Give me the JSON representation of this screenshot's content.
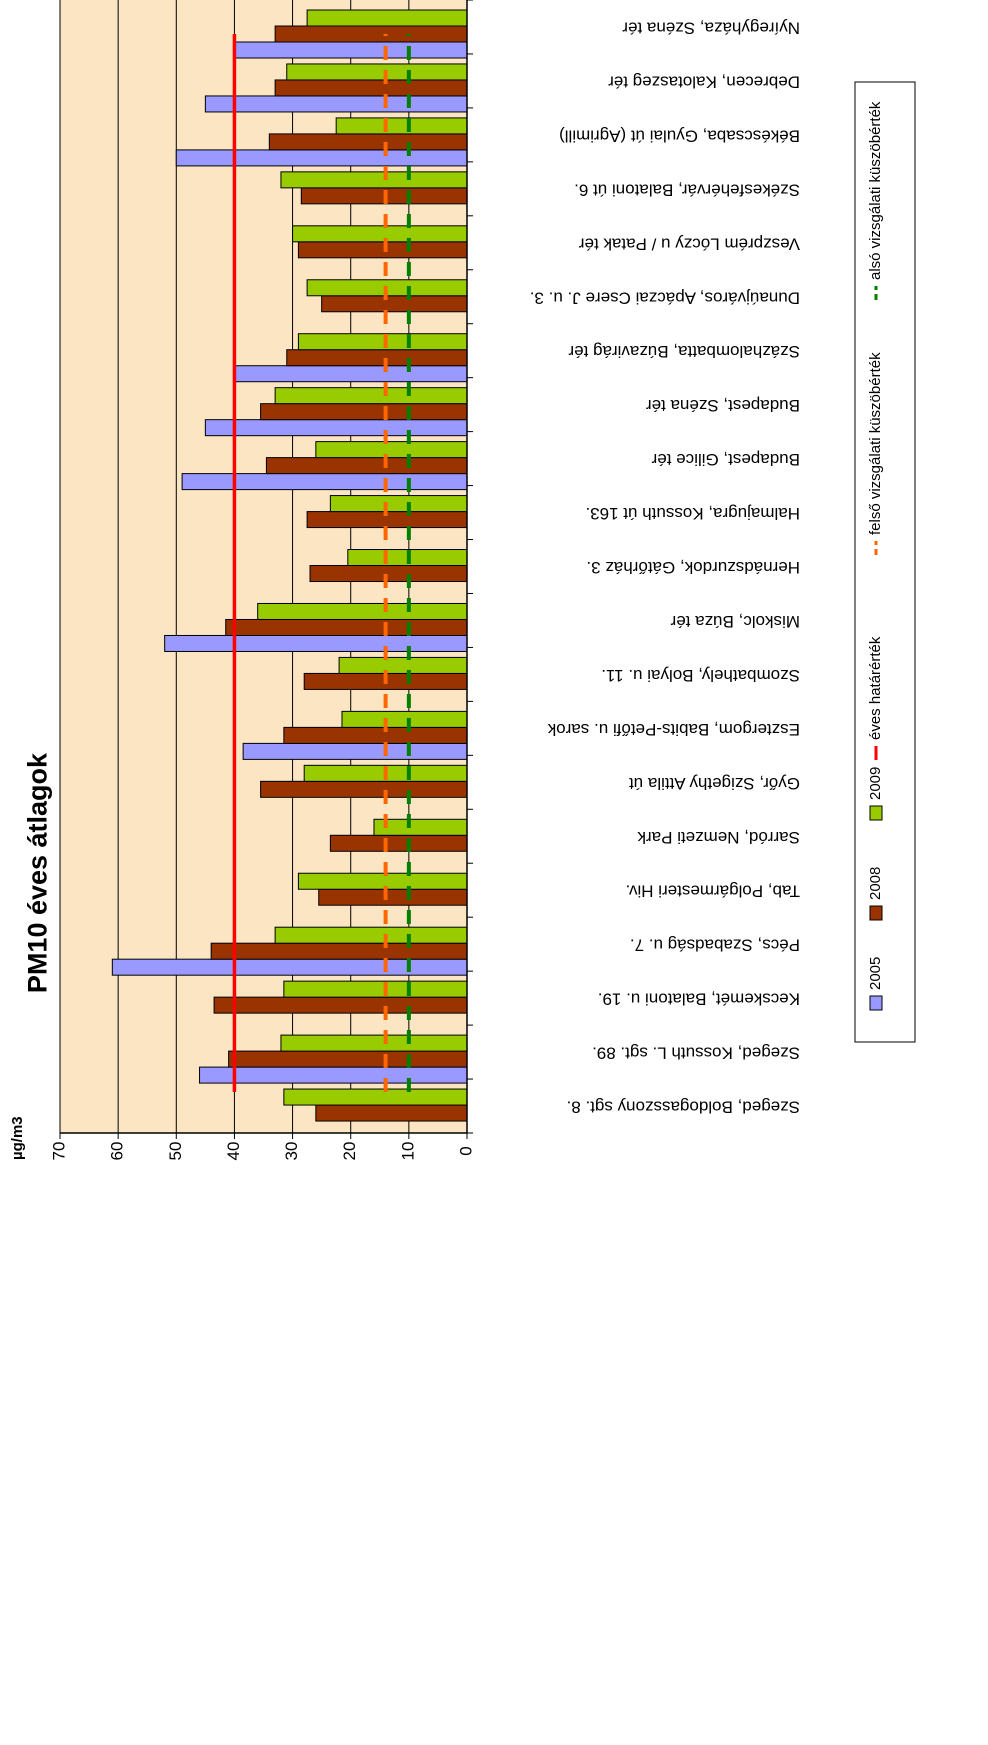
{
  "chart_data": {
    "type": "bar",
    "title": "PM10 éves átlagok",
    "ylabel": "µg/m3",
    "xlabel": "",
    "ylim": [
      0,
      70
    ],
    "yticks": [
      0,
      10,
      20,
      30,
      40,
      50,
      60,
      70
    ],
    "grid": true,
    "legend_position": "bottom",
    "categories": [
      "Szeged, Boldogasszony sgt. 8.",
      "Szeged, Kossuth L. sgt. 89.",
      "Kecskemét, Balatoni u. 19.",
      "Pécs, Szabadság u. 7.",
      "Tab, Polgármesteri Hiv.",
      "Sarród, Nemzeti Park",
      "Győr, Szigethy Attila út",
      "Esztergom, Babits-Petőfi u. sarok",
      "Szombathely, Bolyai u. 11.",
      "Miskolc, Búza tér",
      "Hernádszurdok, Gátőrház 3.",
      "Halmajugra, Kossuth út 163.",
      "Budapest, Gilice tér",
      "Budapest, Széna tér",
      "Százhalombatta, Búzavirág tér",
      "Dunaújváros, Apáczai Csere J. u. 3.",
      "Veszprém Lóczy u / Patak tér",
      "Székesfehérvár, Balatoni út 6.",
      "Békéscsaba, Gyulai út (Agrimill)",
      "Debrecen, Kalotaszeg tér",
      "Nyíregyháza, Széna tér"
    ],
    "series": [
      {
        "name": "2005",
        "color": "#9999ff",
        "values": [
          null,
          46,
          null,
          61,
          null,
          null,
          null,
          38.5,
          null,
          52,
          null,
          null,
          49,
          45,
          40,
          null,
          null,
          null,
          50,
          45,
          40
        ]
      },
      {
        "name": "2008",
        "color": "#993300",
        "values": [
          26,
          41,
          43.5,
          44,
          25.5,
          23.5,
          35.5,
          31.5,
          28,
          41.5,
          27,
          27.5,
          34.5,
          35.5,
          31,
          25,
          29,
          28.5,
          34,
          33,
          33
        ]
      },
      {
        "name": "2009",
        "color": "#99cc00",
        "values": [
          31.5,
          32,
          31.5,
          33,
          29,
          16,
          28,
          21.5,
          22,
          36,
          20.5,
          23.5,
          26,
          33,
          29,
          27.5,
          30,
          32,
          22.5,
          31,
          27.5
        ]
      }
    ],
    "reference_lines": [
      {
        "name": "éves határérték",
        "value": 40,
        "color": "#ff0000",
        "style": "solid"
      },
      {
        "name": "felső vizsgálati küszöbérték",
        "value": 14,
        "color": "#ff6600",
        "style": "dashed"
      },
      {
        "name": "alsó vizsgálati küszöbérték",
        "value": 10,
        "color": "#008000",
        "style": "dashed"
      }
    ],
    "colors": {
      "plot_background": "#fbe5c3",
      "grid": "#000000"
    }
  }
}
